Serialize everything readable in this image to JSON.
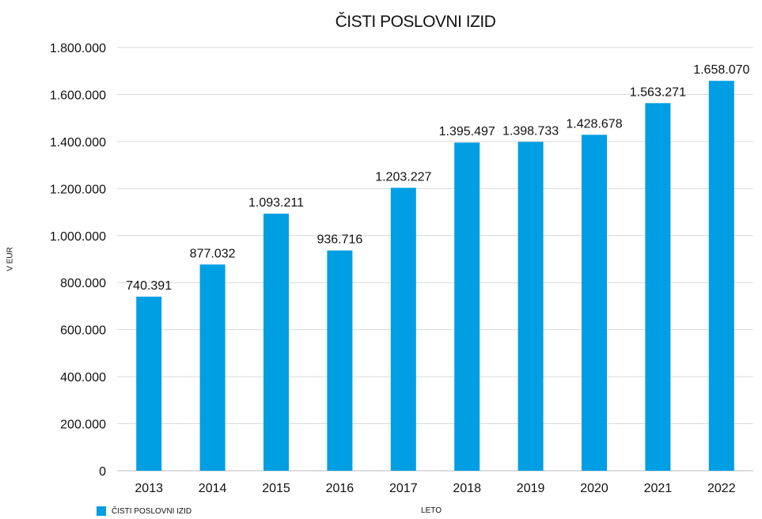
{
  "chart_data": {
    "type": "bar",
    "title": "ČISTI POSLOVNI IZID",
    "xlabel": "LETO",
    "ylabel": "V EUR",
    "categories": [
      "2013",
      "2014",
      "2015",
      "2016",
      "2017",
      "2018",
      "2019",
      "2020",
      "2021",
      "2022"
    ],
    "series": [
      {
        "name": "ČISTI POSLOVNI IZID",
        "values": [
          740391,
          877032,
          1093211,
          936716,
          1203227,
          1395497,
          1398733,
          1428678,
          1563271,
          1658070
        ],
        "value_labels": [
          "740.391",
          "877.032",
          "1.093.211",
          "936.716",
          "1.203.227",
          "1.395.497",
          "1.398.733",
          "1.428.678",
          "1.563.271",
          "1.658.070"
        ],
        "color": "#009ee3"
      }
    ],
    "ylim": [
      0,
      1800000
    ],
    "y_ticks": [
      0,
      200000,
      400000,
      600000,
      800000,
      1000000,
      1200000,
      1400000,
      1600000,
      1800000
    ],
    "y_tick_labels": [
      "0",
      "200.000",
      "400.000",
      "600.000",
      "800.000",
      "1.000.000",
      "1.200.000",
      "1.400.000",
      "1.600.000",
      "1.800.000"
    ],
    "grid": true,
    "legend_position": "bottom-left"
  }
}
